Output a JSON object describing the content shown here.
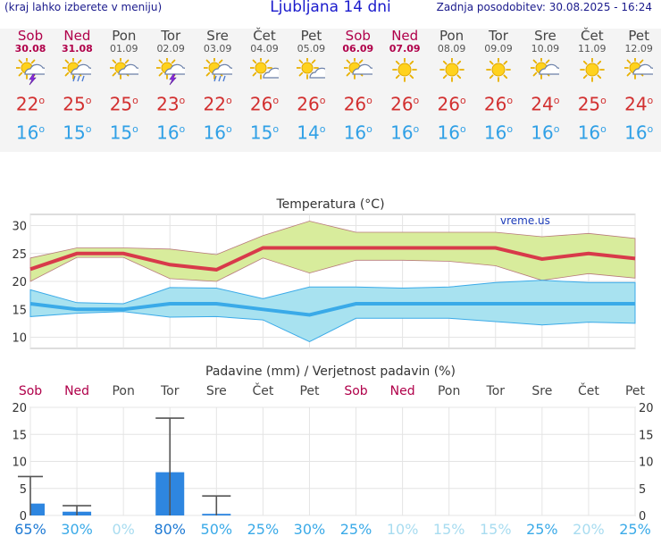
{
  "header": {
    "menu_hint": "(kraj lahko izberete v meniju)",
    "title": "Ljubljana 14 dni",
    "updated": "Zadnja posodobitev: 30.08.2025 - 16:24"
  },
  "days": [
    {
      "name": "Sob",
      "date": "30.08",
      "weekend": true,
      "icon": "sun-cloud-thunder-icon",
      "max": "22",
      "min": "16"
    },
    {
      "name": "Ned",
      "date": "31.08",
      "weekend": true,
      "icon": "sun-cloud-rain-icon",
      "max": "25",
      "min": "15"
    },
    {
      "name": "Pon",
      "date": "01.09",
      "weekend": false,
      "icon": "sun-cloud-icon",
      "max": "25",
      "min": "15"
    },
    {
      "name": "Tor",
      "date": "02.09",
      "weekend": false,
      "icon": "sun-cloud-thunder-icon",
      "max": "23",
      "min": "16"
    },
    {
      "name": "Sre",
      "date": "03.09",
      "weekend": false,
      "icon": "sun-cloud-rain-icon",
      "max": "22",
      "min": "16"
    },
    {
      "name": "Čet",
      "date": "04.09",
      "weekend": false,
      "icon": "sun-small-cloud-icon",
      "max": "26",
      "min": "15"
    },
    {
      "name": "Pet",
      "date": "05.09",
      "weekend": false,
      "icon": "sun-small-cloud-icon",
      "max": "26",
      "min": "14"
    },
    {
      "name": "Sob",
      "date": "06.09",
      "weekend": true,
      "icon": "sun-cloud-icon",
      "max": "26",
      "min": "16"
    },
    {
      "name": "Ned",
      "date": "07.09",
      "weekend": true,
      "icon": "sun-icon",
      "max": "26",
      "min": "16"
    },
    {
      "name": "Pon",
      "date": "08.09",
      "weekend": false,
      "icon": "sun-icon",
      "max": "26",
      "min": "16"
    },
    {
      "name": "Tor",
      "date": "09.09",
      "weekend": false,
      "icon": "sun-icon",
      "max": "26",
      "min": "16"
    },
    {
      "name": "Sre",
      "date": "10.09",
      "weekend": false,
      "icon": "sun-cloud-icon",
      "max": "24",
      "min": "16"
    },
    {
      "name": "Čet",
      "date": "11.09",
      "weekend": false,
      "icon": "sun-icon",
      "max": "25",
      "min": "16"
    },
    {
      "name": "Pet",
      "date": "12.09",
      "weekend": false,
      "icon": "sun-cloud-icon",
      "max": "24",
      "min": "16"
    }
  ],
  "colors": {
    "max_line": "#d83a4a",
    "max_band": "#d8ec9c",
    "min_line": "#3aaae8",
    "min_band": "#a8e2f0",
    "precip_bar": "#2e86e0",
    "weekend": "#b0004a",
    "prob_high": "#1e7ad4",
    "prob_low": "#a8dcf0"
  },
  "chart_data": [
    {
      "type": "line",
      "title": "Temperatura (°C)",
      "watermark": "vreme.us",
      "categories": [
        "Sob",
        "Ned",
        "Pon",
        "Tor",
        "Sre",
        "Čet",
        "Pet",
        "Sob",
        "Ned",
        "Pon",
        "Tor",
        "Sre",
        "Čet",
        "Pet"
      ],
      "ylim": [
        8,
        32
      ],
      "yticks": [
        10,
        15,
        20,
        25,
        30
      ],
      "grid": true,
      "series": [
        {
          "values": [
            22.2,
            25,
            25,
            23,
            22.1,
            26,
            26,
            26,
            26,
            26,
            26,
            24,
            25,
            24.1
          ]
        },
        {
          "values": [
            16,
            15,
            15,
            16,
            16,
            15,
            14,
            16,
            16,
            16,
            16,
            16,
            16,
            16
          ]
        }
      ],
      "max_band": {
        "upper": [
          24.2,
          26,
          26,
          25.8,
          24.8,
          28.2,
          30.8,
          28.8,
          28.8,
          28.8,
          28.8,
          28,
          28.6,
          27.7
        ],
        "lower": [
          20,
          24.3,
          24.3,
          20.5,
          20,
          24.2,
          21.5,
          23.8,
          23.8,
          23.6,
          22.8,
          20.2,
          21.4,
          20.6
        ]
      },
      "min_band": {
        "upper": [
          18.5,
          16.2,
          16,
          18.9,
          18.8,
          16.9,
          19,
          19,
          18.8,
          19,
          19.8,
          20.2,
          19.8,
          19.8
        ]
      },
      "min_band_lower": [
        13.7,
        14.3,
        14.6,
        13.6,
        13.7,
        13.1,
        9.2,
        13.4,
        13.4,
        13.4,
        12.8,
        12.2,
        12.7,
        12.5
      ]
    },
    {
      "type": "bar",
      "title": "Padavine (mm) / Verjetnost padavin (%)",
      "categories": [
        "Sob",
        "Ned",
        "Pon",
        "Tor",
        "Sre",
        "Čet",
        "Pet",
        "Sob",
        "Ned",
        "Pon",
        "Tor",
        "Sre",
        "Čet",
        "Pet"
      ],
      "ylim": [
        0,
        20
      ],
      "yticks": [
        0,
        5,
        10,
        15,
        20
      ],
      "grid": true,
      "values": [
        2.2,
        0.7,
        0,
        8,
        0.3,
        0,
        0,
        0,
        0,
        0,
        0,
        0,
        0,
        0
      ],
      "error_max": [
        7.2,
        1.8,
        0,
        18,
        3.6,
        0,
        0,
        0,
        0,
        0,
        0,
        0,
        0,
        0
      ],
      "probabilities": [
        "65%",
        "30%",
        "0%",
        "80%",
        "50%",
        "25%",
        "30%",
        "25%",
        "10%",
        "15%",
        "15%",
        "25%",
        "20%",
        "25%"
      ],
      "probability_values": [
        65,
        30,
        0,
        80,
        50,
        25,
        30,
        25,
        10,
        15,
        15,
        25,
        20,
        25
      ]
    }
  ]
}
